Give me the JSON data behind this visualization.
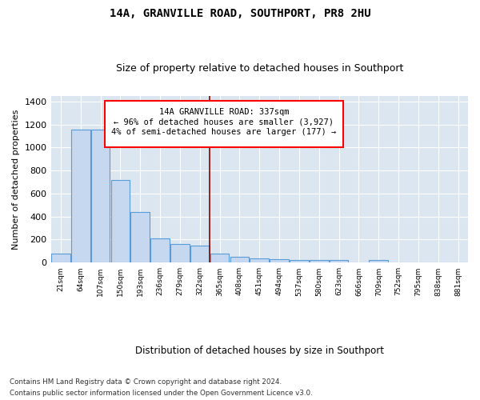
{
  "title": "14A, GRANVILLE ROAD, SOUTHPORT, PR8 2HU",
  "subtitle": "Size of property relative to detached houses in Southport",
  "xlabel": "Distribution of detached houses by size in Southport",
  "ylabel": "Number of detached properties",
  "footnote1": "Contains HM Land Registry data © Crown copyright and database right 2024.",
  "footnote2": "Contains public sector information licensed under the Open Government Licence v3.0.",
  "annotation_line1": "14A GRANVILLE ROAD: 337sqm",
  "annotation_line2": "← 96% of detached houses are smaller (3,927)",
  "annotation_line3": "4% of semi-detached houses are larger (177) →",
  "bar_color": "#c5d8f0",
  "bar_edge_color": "#5b9bd5",
  "plot_bg_color": "#dce6f1",
  "red_line_color": "#8b0000",
  "red_line_x": 8,
  "categories": [
    "21sqm",
    "64sqm",
    "107sqm",
    "150sqm",
    "193sqm",
    "236sqm",
    "279sqm",
    "322sqm",
    "365sqm",
    "408sqm",
    "451sqm",
    "494sqm",
    "537sqm",
    "580sqm",
    "623sqm",
    "666sqm",
    "709sqm",
    "752sqm",
    "795sqm",
    "838sqm",
    "881sqm"
  ],
  "values": [
    80,
    1155,
    1155,
    720,
    440,
    210,
    165,
    150,
    80,
    50,
    35,
    28,
    25,
    20,
    20,
    5,
    20,
    3,
    0,
    0,
    3
  ],
  "ylim": [
    0,
    1450
  ],
  "yticks": [
    0,
    200,
    400,
    600,
    800,
    1000,
    1200,
    1400
  ],
  "grid_color": "#ffffff",
  "annotation_box_color": "white",
  "annotation_box_edge": "red"
}
